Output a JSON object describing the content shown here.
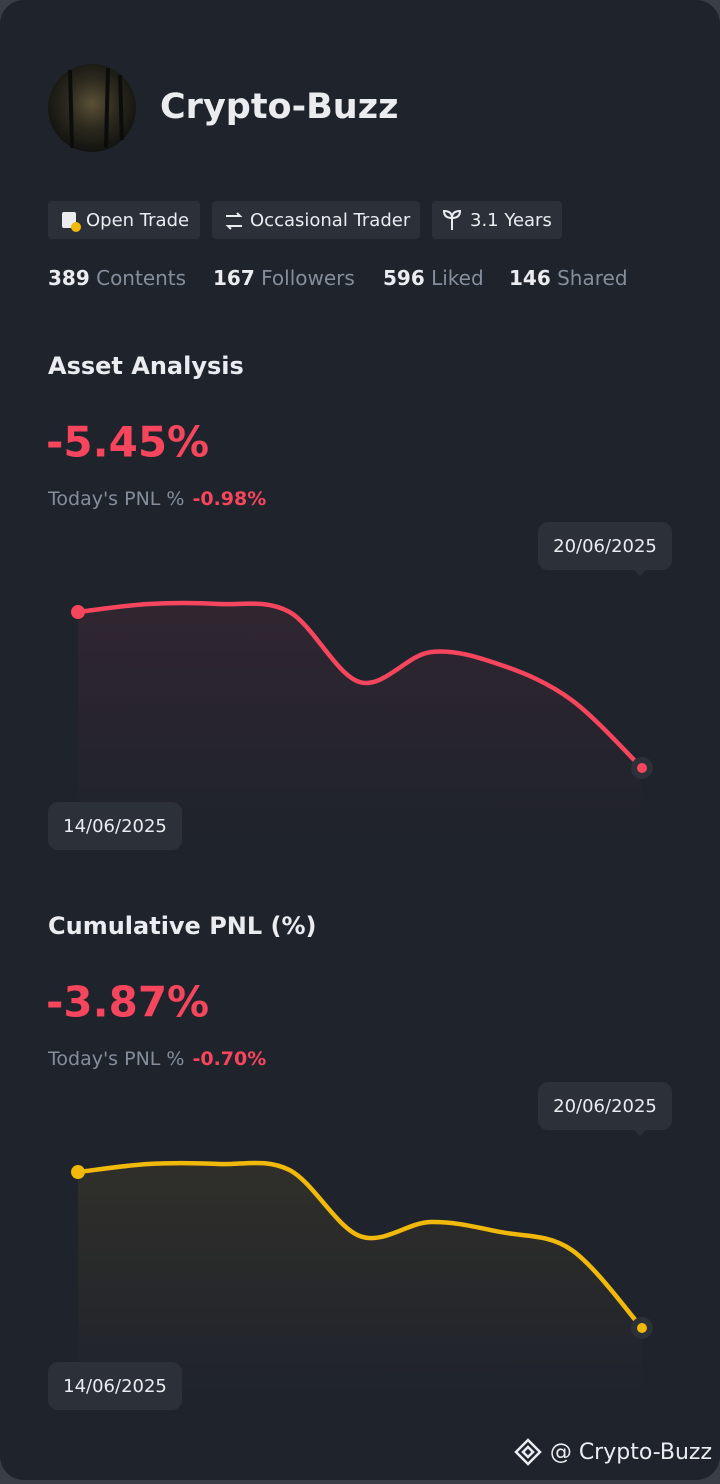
{
  "profile": {
    "name": "Crypto-Buzz",
    "tags": [
      "Open Trade",
      "Occasional Trader",
      "3.1 Years"
    ],
    "stats": [
      {
        "count": "389",
        "label": "Contents"
      },
      {
        "count": "167",
        "label": "Followers"
      },
      {
        "count": "596",
        "label": "Liked"
      },
      {
        "count": "146",
        "label": "Shared"
      }
    ]
  },
  "sections": [
    {
      "title": "Asset Analysis",
      "value": "-5.45%",
      "pnl_label": "Today's PNL %",
      "pnl_value": "-0.98%",
      "start_date": "14/06/2025",
      "end_date": "20/06/2025",
      "chart": {
        "type": "line",
        "color": "#f6465d",
        "values": [
          0,
          0.28,
          0.28,
          0,
          -2.45,
          -1.4,
          -1.85,
          -3.07,
          -5.45
        ]
      }
    },
    {
      "title": "Cumulative PNL (%)",
      "value": "-3.87%",
      "pnl_label": "Today's PNL %",
      "pnl_value": "-0.70%",
      "start_date": "14/06/2025",
      "end_date": "20/06/2025",
      "chart": {
        "type": "line",
        "color": "#f0b90b",
        "values": [
          0,
          0.2,
          0.2,
          0.05,
          -1.59,
          -1.24,
          -1.49,
          -1.93,
          -3.87
        ]
      }
    }
  ],
  "footer": {
    "watermark": "@ Crypto-Buzz"
  }
}
